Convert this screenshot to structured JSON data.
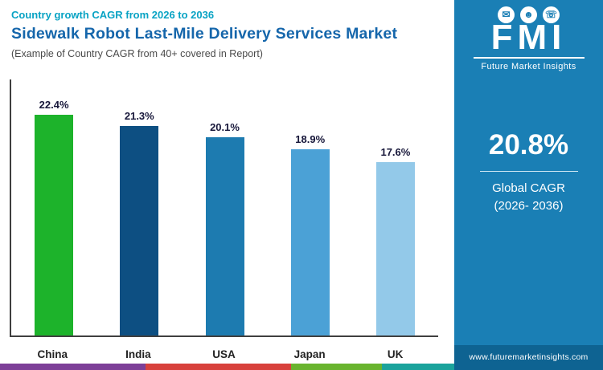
{
  "header": {
    "eyebrow": "Country growth CAGR from 2026 to 2036",
    "title": "Sidewalk Robot Last-Mile Delivery Services Market",
    "subtitle": "(Example of Country CAGR from 40+ covered in Report)"
  },
  "chart_data": {
    "type": "bar",
    "title": "Country growth CAGR from 2026 to 2036",
    "categories": [
      "China",
      "India",
      "USA",
      "Japan",
      "UK"
    ],
    "values": [
      22.4,
      21.3,
      20.1,
      18.9,
      17.6
    ],
    "value_labels": [
      "22.4%",
      "21.3%",
      "20.1%",
      "18.9%",
      "17.6%"
    ],
    "bar_colors": [
      "#1db32b",
      "#0d4f82",
      "#1d7bb0",
      "#4ba1d6",
      "#93c9e9"
    ],
    "xlabel": "",
    "ylabel": "",
    "ylim": [
      0,
      26
    ],
    "grid": false,
    "legend": false
  },
  "side_panel": {
    "background": "#1a7fb5",
    "stat_value": "20.8%",
    "caption_line1": "Global CAGR",
    "caption_line2": "(2026- 2036)",
    "website": "www.futuremarketinsights.com"
  },
  "logo": {
    "brand": "FMI",
    "tagline": "Future Market Insights",
    "icons": [
      {
        "name": "envelope-icon",
        "glyph": "✉"
      },
      {
        "name": "person-icon",
        "glyph": "☻"
      },
      {
        "name": "phone-icon",
        "glyph": "☏"
      }
    ]
  },
  "footer_stripe": {
    "colors": [
      "#7d3f98",
      "#d8413c",
      "#69b42e",
      "#1ba39c"
    ],
    "widths": [
      "32%",
      "32%",
      "20%",
      "16%"
    ]
  }
}
